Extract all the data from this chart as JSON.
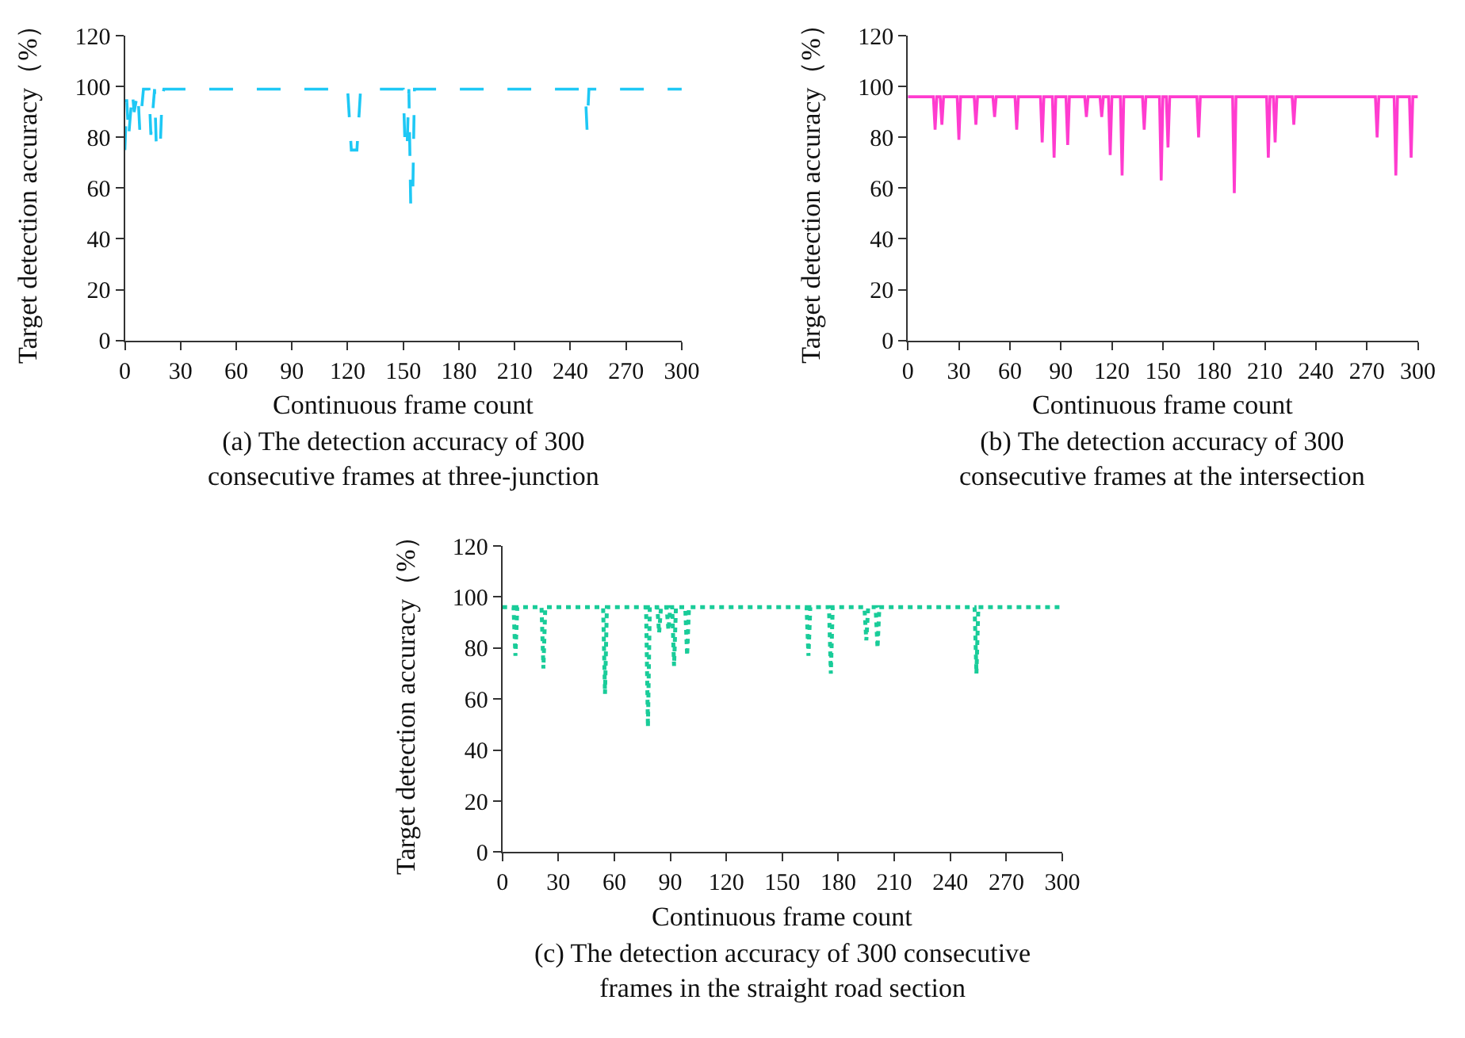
{
  "chart_data": [
    {
      "type": "line",
      "title": "(a) The detection accuracy of 300\nconsecutive frames at three-junction",
      "xlabel": "Continuous frame count",
      "ylabel": "Target detection accuracy（%）",
      "line_style": "dashed",
      "xlim": [
        0,
        300
      ],
      "ylim": [
        0,
        120
      ],
      "xticks": [
        0,
        30,
        60,
        90,
        120,
        150,
        180,
        210,
        240,
        270,
        300
      ],
      "yticks": [
        0,
        20,
        40,
        60,
        80,
        100,
        120
      ],
      "x": [
        0,
        1,
        2,
        4,
        5,
        7,
        8,
        10,
        11,
        13,
        14,
        16,
        17,
        19,
        20,
        21,
        120,
        122,
        125,
        127,
        150,
        151,
        152,
        153,
        154,
        155,
        156,
        248,
        249,
        250,
        300
      ],
      "series": [
        {
          "color": "#1ec8f5",
          "values": [
            75,
            95,
            80,
            98,
            90,
            98,
            83,
            99,
            99,
            99,
            81,
            99,
            75,
            75,
            95,
            99,
            99,
            75,
            75,
            99,
            99,
            75,
            75,
            99,
            53,
            53,
            99,
            99,
            83,
            99,
            99
          ]
        }
      ]
    },
    {
      "type": "line",
      "title": "(b) The detection accuracy of 300\nconsecutive frames at the intersection",
      "xlabel": "Continuous frame count",
      "ylabel": "Target detection accuracy（%）",
      "line_style": "solid",
      "xlim": [
        0,
        300
      ],
      "ylim": [
        0,
        120
      ],
      "xticks": [
        0,
        30,
        60,
        90,
        120,
        150,
        180,
        210,
        240,
        270,
        300
      ],
      "yticks": [
        0,
        20,
        40,
        60,
        80,
        100,
        120
      ],
      "x": [
        0,
        15,
        16,
        17,
        19,
        20,
        21,
        29,
        30,
        31,
        39,
        40,
        41,
        50,
        51,
        52,
        63,
        64,
        65,
        78,
        79,
        80,
        85,
        86,
        87,
        93,
        94,
        95,
        104,
        105,
        106,
        113,
        114,
        115,
        118,
        119,
        120,
        125,
        126,
        127,
        138,
        139,
        140,
        148,
        149,
        150,
        152,
        153,
        154,
        170,
        171,
        172,
        191,
        192,
        193,
        211,
        212,
        213,
        215,
        216,
        217,
        226,
        227,
        228,
        275,
        276,
        277,
        286,
        287,
        288,
        295,
        296,
        297,
        300
      ],
      "series": [
        {
          "color": "#ff3ccf",
          "values": [
            96,
            96,
            83,
            96,
            96,
            85,
            96,
            96,
            79,
            96,
            96,
            85,
            96,
            96,
            88,
            96,
            96,
            83,
            96,
            96,
            78,
            96,
            96,
            72,
            96,
            96,
            77,
            96,
            96,
            88,
            96,
            96,
            88,
            96,
            96,
            73,
            96,
            96,
            65,
            96,
            96,
            83,
            96,
            96,
            63,
            96,
            96,
            76,
            96,
            96,
            80,
            96,
            96,
            58,
            96,
            96,
            72,
            96,
            96,
            78,
            96,
            96,
            85,
            96,
            96,
            80,
            96,
            96,
            65,
            96,
            96,
            72,
            96,
            96
          ]
        }
      ]
    },
    {
      "type": "line",
      "title": "(c) The detection accuracy of 300 consecutive\nframes in the straight road section",
      "xlabel": "Continuous frame count",
      "ylabel": "Target detection accuracy（%）",
      "line_style": "dotted",
      "xlim": [
        0,
        300
      ],
      "ylim": [
        0,
        120
      ],
      "xticks": [
        0,
        30,
        60,
        90,
        120,
        150,
        180,
        210,
        240,
        270,
        300
      ],
      "yticks": [
        0,
        20,
        40,
        60,
        80,
        100,
        120
      ],
      "x": [
        0,
        6,
        7,
        8,
        21,
        22,
        23,
        54,
        55,
        56,
        77,
        78,
        79,
        83,
        84,
        85,
        88,
        89,
        90,
        91,
        92,
        93,
        98,
        99,
        100,
        163,
        164,
        165,
        175,
        176,
        177,
        194,
        195,
        196,
        200,
        201,
        202,
        253,
        254,
        255,
        300
      ],
      "series": [
        {
          "color": "#19cc99",
          "values": [
            96,
            96,
            77,
            96,
            96,
            72,
            96,
            96,
            62,
            96,
            96,
            49,
            96,
            96,
            86,
            96,
            96,
            87,
            96,
            96,
            73,
            96,
            96,
            77,
            96,
            96,
            77,
            96,
            96,
            70,
            96,
            96,
            83,
            96,
            96,
            80,
            96,
            96,
            70,
            96,
            96
          ]
        }
      ]
    }
  ]
}
